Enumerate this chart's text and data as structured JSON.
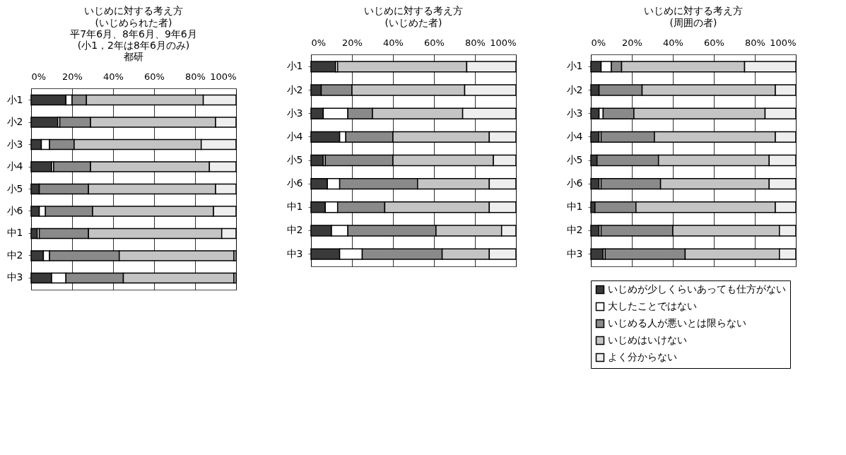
{
  "chart_data": [
    {
      "type": "bar",
      "orientation": "horizontal",
      "stacked": true,
      "title": "いじめに対する考え方",
      "subtitle": "(いじめられた者)\n平7年6月、8年6月、9年6月\n(小1，2年は8年6月のみ)\n都研",
      "categories": [
        "小1",
        "小2",
        "小3",
        "小4",
        "小5",
        "小6",
        "中1",
        "中2",
        "中3"
      ],
      "xlim": [
        0,
        100
      ],
      "xticks": [
        {
          "value": 0,
          "label": "0%"
        },
        {
          "value": 20,
          "label": "20%"
        },
        {
          "value": 40,
          "label": "40%"
        },
        {
          "value": 60,
          "label": "60%"
        },
        {
          "value": 80,
          "label": "80%"
        },
        {
          "value": 100,
          "label": "100%"
        }
      ],
      "grid": "x",
      "series": [
        {
          "color": "#3a3a3a",
          "values": [
            17,
            13,
            5,
            10,
            4,
            4,
            3,
            6,
            10
          ]
        },
        {
          "color": "#ffffff",
          "values": [
            3,
            1,
            4,
            1,
            0,
            3,
            1,
            3,
            7
          ]
        },
        {
          "color": "#8a8a8a",
          "values": [
            7,
            15,
            12,
            18,
            24,
            23,
            24,
            34,
            28
          ]
        },
        {
          "color": "#c4c4c4",
          "values": [
            57,
            61,
            62,
            58,
            62,
            59,
            65,
            56,
            54
          ]
        },
        {
          "color": "#eeeeee",
          "values": [
            16,
            10,
            17,
            13,
            10,
            11,
            7,
            1,
            1
          ]
        }
      ]
    },
    {
      "type": "bar",
      "orientation": "horizontal",
      "stacked": true,
      "title": "いじめに対する考え方",
      "subtitle": "(いじめた者)",
      "categories": [
        "小1",
        "小2",
        "小3",
        "小4",
        "小5",
        "小6",
        "中1",
        "中2",
        "中3"
      ],
      "xlim": [
        0,
        100
      ],
      "xticks": [
        {
          "value": 0,
          "label": "0%"
        },
        {
          "value": 20,
          "label": "20%"
        },
        {
          "value": 40,
          "label": "40%"
        },
        {
          "value": 60,
          "label": "60%"
        },
        {
          "value": 80,
          "label": "80%"
        },
        {
          "value": 100,
          "label": "100%"
        }
      ],
      "grid": "x",
      "series": [
        {
          "color": "#3a3a3a",
          "values": [
            12,
            5,
            6,
            14,
            6,
            8,
            7,
            10,
            14
          ]
        },
        {
          "color": "#ffffff",
          "values": [
            1,
            0,
            12,
            3,
            1,
            6,
            6,
            8,
            11
          ]
        },
        {
          "color": "#8a8a8a",
          "values": [
            0,
            15,
            12,
            23,
            33,
            38,
            23,
            43,
            39
          ]
        },
        {
          "color": "#c4c4c4",
          "values": [
            63,
            55,
            44,
            47,
            49,
            35,
            51,
            32,
            23
          ]
        },
        {
          "color": "#eeeeee",
          "values": [
            24,
            25,
            26,
            13,
            11,
            13,
            13,
            7,
            13
          ]
        }
      ]
    },
    {
      "type": "bar",
      "orientation": "horizontal",
      "stacked": true,
      "title": "いじめに対する考え方",
      "subtitle": "(周囲の者)",
      "categories": [
        "小1",
        "小2",
        "小3",
        "小4",
        "小5",
        "小6",
        "中1",
        "中2",
        "中3"
      ],
      "xlim": [
        0,
        100
      ],
      "xticks": [
        {
          "value": 0,
          "label": "0%"
        },
        {
          "value": 20,
          "label": "20%"
        },
        {
          "value": 40,
          "label": "40%"
        },
        {
          "value": 60,
          "label": "60%"
        },
        {
          "value": 80,
          "label": "80%"
        },
        {
          "value": 100,
          "label": "100%"
        }
      ],
      "grid": "x",
      "legend": "bottom",
      "series": [
        {
          "name": "いじめが少しくらいあっても仕方がない",
          "color": "#3a3a3a",
          "values": [
            5,
            4,
            4,
            4,
            3,
            4,
            2,
            4,
            6
          ]
        },
        {
          "name": "大したことではない",
          "color": "#ffffff",
          "values": [
            5,
            0,
            2,
            1,
            0,
            1,
            0,
            1,
            1
          ]
        },
        {
          "name": "いじめる人が悪いとは限らない",
          "color": "#8a8a8a",
          "values": [
            5,
            21,
            15,
            26,
            30,
            29,
            20,
            35,
            39
          ]
        },
        {
          "name": "いじめはいけない",
          "color": "#c4c4c4",
          "values": [
            60,
            65,
            64,
            59,
            54,
            53,
            68,
            52,
            46
          ]
        },
        {
          "name": "よく分からない",
          "color": "#eeeeee",
          "values": [
            25,
            10,
            15,
            10,
            13,
            13,
            10,
            8,
            8
          ]
        }
      ]
    }
  ]
}
